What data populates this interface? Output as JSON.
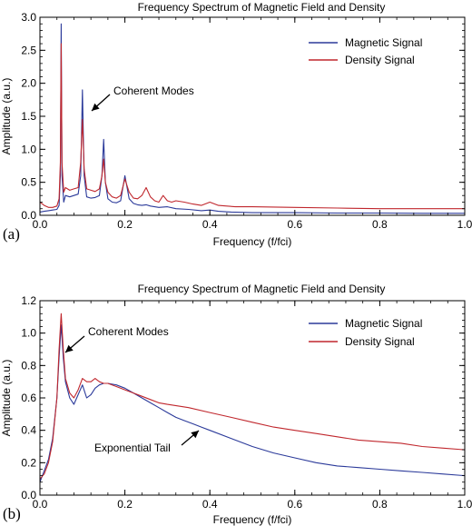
{
  "chart_data": [
    {
      "panel": "(a)",
      "type": "line",
      "title": "Frequency Spectrum of Magnetic Field and Density",
      "xlabel": "Frequency (f/fci)",
      "ylabel": "Amplitude (a.u.)",
      "xlim": [
        0.0,
        1.0
      ],
      "ylim": [
        0.0,
        3.0
      ],
      "xticks": [
        "0.0",
        "0.2",
        "0.4",
        "0.6",
        "0.8",
        "1.0"
      ],
      "yticks": [
        "0.0",
        "0.5",
        "1.0",
        "1.5",
        "2.0",
        "2.5",
        "3.0"
      ],
      "legend_position": "top-right",
      "annotations": [
        {
          "text": "Coherent Modes",
          "target": [
            0.1,
            1.55
          ]
        }
      ],
      "series": [
        {
          "name": "Magnetic Signal",
          "color": "#2b3a9a",
          "points": [
            [
              0.0,
              0.05
            ],
            [
              0.01,
              0.06
            ],
            [
              0.02,
              0.07
            ],
            [
              0.03,
              0.08
            ],
            [
              0.04,
              0.09
            ],
            [
              0.045,
              0.15
            ],
            [
              0.048,
              0.6
            ],
            [
              0.05,
              2.9
            ],
            [
              0.052,
              0.6
            ],
            [
              0.056,
              0.2
            ],
            [
              0.06,
              0.3
            ],
            [
              0.07,
              0.28
            ],
            [
              0.08,
              0.3
            ],
            [
              0.09,
              0.32
            ],
            [
              0.096,
              0.6
            ],
            [
              0.1,
              1.9
            ],
            [
              0.104,
              0.6
            ],
            [
              0.11,
              0.28
            ],
            [
              0.12,
              0.26
            ],
            [
              0.13,
              0.27
            ],
            [
              0.14,
              0.3
            ],
            [
              0.146,
              0.6
            ],
            [
              0.15,
              1.15
            ],
            [
              0.154,
              0.5
            ],
            [
              0.16,
              0.25
            ],
            [
              0.17,
              0.2
            ],
            [
              0.18,
              0.19
            ],
            [
              0.19,
              0.22
            ],
            [
              0.2,
              0.6
            ],
            [
              0.21,
              0.25
            ],
            [
              0.22,
              0.18
            ],
            [
              0.23,
              0.16
            ],
            [
              0.24,
              0.15
            ],
            [
              0.25,
              0.16
            ],
            [
              0.26,
              0.14
            ],
            [
              0.28,
              0.12
            ],
            [
              0.3,
              0.13
            ],
            [
              0.32,
              0.1
            ],
            [
              0.35,
              0.09
            ],
            [
              0.38,
              0.07
            ],
            [
              0.4,
              0.08
            ],
            [
              0.42,
              0.06
            ],
            [
              0.45,
              0.05
            ],
            [
              0.5,
              0.04
            ],
            [
              0.55,
              0.04
            ],
            [
              0.6,
              0.04
            ],
            [
              0.7,
              0.035
            ],
            [
              0.8,
              0.035
            ],
            [
              0.9,
              0.03
            ],
            [
              1.0,
              0.03
            ]
          ]
        },
        {
          "name": "Density Signal",
          "color": "#c0272d",
          "points": [
            [
              0.0,
              0.2
            ],
            [
              0.01,
              0.15
            ],
            [
              0.02,
              0.12
            ],
            [
              0.03,
              0.12
            ],
            [
              0.04,
              0.14
            ],
            [
              0.045,
              0.25
            ],
            [
              0.048,
              0.8
            ],
            [
              0.05,
              2.6
            ],
            [
              0.052,
              0.8
            ],
            [
              0.056,
              0.35
            ],
            [
              0.06,
              0.42
            ],
            [
              0.07,
              0.38
            ],
            [
              0.08,
              0.4
            ],
            [
              0.09,
              0.42
            ],
            [
              0.096,
              0.8
            ],
            [
              0.1,
              1.45
            ],
            [
              0.104,
              0.7
            ],
            [
              0.11,
              0.4
            ],
            [
              0.12,
              0.38
            ],
            [
              0.13,
              0.36
            ],
            [
              0.14,
              0.4
            ],
            [
              0.146,
              0.6
            ],
            [
              0.15,
              0.85
            ],
            [
              0.154,
              0.5
            ],
            [
              0.16,
              0.35
            ],
            [
              0.17,
              0.28
            ],
            [
              0.18,
              0.26
            ],
            [
              0.19,
              0.3
            ],
            [
              0.2,
              0.55
            ],
            [
              0.21,
              0.35
            ],
            [
              0.22,
              0.26
            ],
            [
              0.23,
              0.25
            ],
            [
              0.24,
              0.3
            ],
            [
              0.25,
              0.42
            ],
            [
              0.26,
              0.28
            ],
            [
              0.27,
              0.22
            ],
            [
              0.28,
              0.2
            ],
            [
              0.29,
              0.3
            ],
            [
              0.3,
              0.22
            ],
            [
              0.31,
              0.2
            ],
            [
              0.32,
              0.22
            ],
            [
              0.34,
              0.2
            ],
            [
              0.36,
              0.17
            ],
            [
              0.38,
              0.15
            ],
            [
              0.4,
              0.2
            ],
            [
              0.42,
              0.15
            ],
            [
              0.44,
              0.14
            ],
            [
              0.46,
              0.13
            ],
            [
              0.5,
              0.13
            ],
            [
              0.6,
              0.12
            ],
            [
              0.7,
              0.11
            ],
            [
              0.8,
              0.1
            ],
            [
              0.9,
              0.1
            ],
            [
              1.0,
              0.1
            ]
          ]
        }
      ]
    },
    {
      "panel": "(b)",
      "type": "line",
      "title": "Frequency Spectrum of Magnetic Field and Density",
      "xlabel": "Frequency (f/fci)",
      "ylabel": "Amplitude (a.u.)",
      "xlim": [
        0.0,
        1.0
      ],
      "ylim": [
        0.0,
        1.2
      ],
      "xticks": [
        "0.0",
        "0.2",
        "0.4",
        "0.6",
        "0.8",
        "1.0"
      ],
      "yticks": [
        "0.0",
        "0.2",
        "0.4",
        "0.6",
        "0.8",
        "1.0",
        "1.2"
      ],
      "legend_position": "top-right",
      "annotations": [
        {
          "text": "Coherent Modes",
          "target": [
            0.05,
            1.07
          ]
        },
        {
          "text": "Exponential Tail",
          "target": [
            0.4,
            0.44
          ]
        }
      ],
      "series": [
        {
          "name": "Magnetic Signal",
          "color": "#2b3a9a",
          "points": [
            [
              0.0,
              0.08
            ],
            [
              0.01,
              0.15
            ],
            [
              0.02,
              0.22
            ],
            [
              0.03,
              0.35
            ],
            [
              0.04,
              0.6
            ],
            [
              0.045,
              0.85
            ],
            [
              0.05,
              1.05
            ],
            [
              0.055,
              0.85
            ],
            [
              0.06,
              0.7
            ],
            [
              0.07,
              0.6
            ],
            [
              0.08,
              0.56
            ],
            [
              0.09,
              0.62
            ],
            [
              0.1,
              0.68
            ],
            [
              0.11,
              0.6
            ],
            [
              0.12,
              0.62
            ],
            [
              0.13,
              0.66
            ],
            [
              0.14,
              0.68
            ],
            [
              0.15,
              0.69
            ],
            [
              0.16,
              0.69
            ],
            [
              0.18,
              0.68
            ],
            [
              0.2,
              0.66
            ],
            [
              0.22,
              0.63
            ],
            [
              0.24,
              0.6
            ],
            [
              0.26,
              0.57
            ],
            [
              0.28,
              0.54
            ],
            [
              0.3,
              0.51
            ],
            [
              0.32,
              0.48
            ],
            [
              0.34,
              0.46
            ],
            [
              0.36,
              0.44
            ],
            [
              0.38,
              0.42
            ],
            [
              0.4,
              0.4
            ],
            [
              0.45,
              0.35
            ],
            [
              0.5,
              0.3
            ],
            [
              0.55,
              0.26
            ],
            [
              0.6,
              0.23
            ],
            [
              0.65,
              0.2
            ],
            [
              0.7,
              0.18
            ],
            [
              0.75,
              0.17
            ],
            [
              0.8,
              0.16
            ],
            [
              0.85,
              0.15
            ],
            [
              0.9,
              0.14
            ],
            [
              0.95,
              0.13
            ],
            [
              1.0,
              0.12
            ]
          ]
        },
        {
          "name": "Density Signal",
          "color": "#c0272d",
          "points": [
            [
              0.0,
              0.1
            ],
            [
              0.01,
              0.13
            ],
            [
              0.02,
              0.2
            ],
            [
              0.03,
              0.33
            ],
            [
              0.04,
              0.6
            ],
            [
              0.045,
              0.9
            ],
            [
              0.05,
              1.12
            ],
            [
              0.055,
              0.9
            ],
            [
              0.06,
              0.72
            ],
            [
              0.07,
              0.63
            ],
            [
              0.08,
              0.6
            ],
            [
              0.09,
              0.65
            ],
            [
              0.1,
              0.72
            ],
            [
              0.11,
              0.7
            ],
            [
              0.12,
              0.7
            ],
            [
              0.13,
              0.72
            ],
            [
              0.14,
              0.7
            ],
            [
              0.15,
              0.69
            ],
            [
              0.16,
              0.69
            ],
            [
              0.18,
              0.67
            ],
            [
              0.2,
              0.65
            ],
            [
              0.22,
              0.63
            ],
            [
              0.24,
              0.61
            ],
            [
              0.26,
              0.59
            ],
            [
              0.28,
              0.57
            ],
            [
              0.3,
              0.56
            ],
            [
              0.35,
              0.54
            ],
            [
              0.4,
              0.51
            ],
            [
              0.45,
              0.48
            ],
            [
              0.5,
              0.45
            ],
            [
              0.55,
              0.42
            ],
            [
              0.6,
              0.4
            ],
            [
              0.65,
              0.38
            ],
            [
              0.7,
              0.36
            ],
            [
              0.75,
              0.34
            ],
            [
              0.8,
              0.33
            ],
            [
              0.85,
              0.32
            ],
            [
              0.9,
              0.3
            ],
            [
              0.95,
              0.29
            ],
            [
              1.0,
              0.28
            ]
          ]
        }
      ]
    }
  ]
}
